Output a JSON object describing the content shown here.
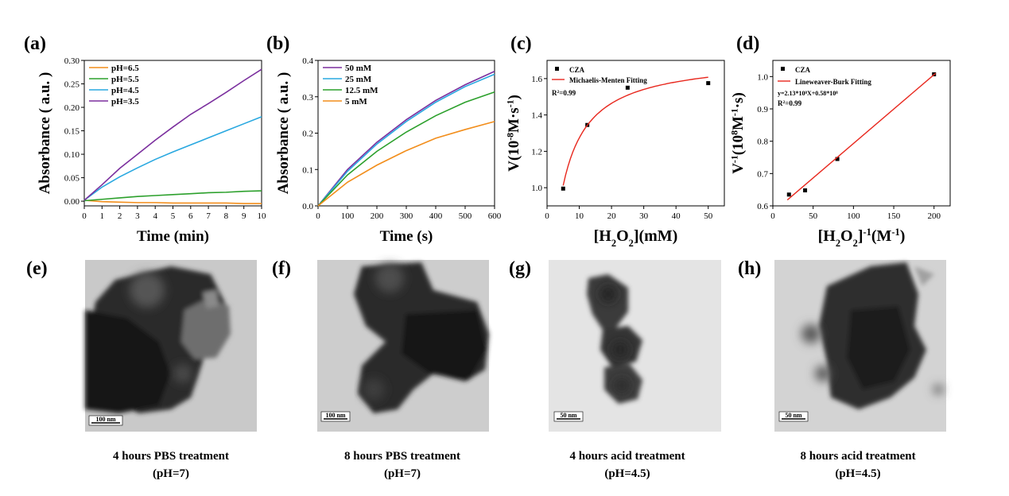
{
  "chart_data": [
    {
      "panel": "(a)",
      "type": "line",
      "xlabel": "Time (min)",
      "ylabel": "Absorbance ( a.u. )",
      "xlim": [
        0,
        10
      ],
      "ylim": [
        -0.01,
        0.3
      ],
      "xticks": [
        "0",
        "1",
        "2",
        "3",
        "4",
        "5",
        "6",
        "7",
        "8",
        "9",
        "10"
      ],
      "yticks": [
        "0.00",
        "0.05",
        "0.10",
        "0.15",
        "0.20",
        "0.25",
        "0.30"
      ],
      "legend_position": "top-left",
      "series": [
        {
          "name": "pH=6.5",
          "color": "#f28e1c",
          "x": [
            0,
            1,
            2,
            3,
            4,
            5,
            6,
            7,
            8,
            9,
            10
          ],
          "y": [
            0.002,
            -0.001,
            -0.002,
            -0.003,
            -0.003,
            -0.004,
            -0.004,
            -0.004,
            -0.004,
            -0.005,
            -0.005
          ]
        },
        {
          "name": "pH=5.5",
          "color": "#2ca02c",
          "x": [
            0,
            1,
            2,
            3,
            4,
            5,
            6,
            7,
            8,
            9,
            10
          ],
          "y": [
            0.001,
            0.004,
            0.007,
            0.01,
            0.012,
            0.014,
            0.016,
            0.018,
            0.019,
            0.021,
            0.022
          ]
        },
        {
          "name": "pH=4.5",
          "color": "#29a8e0",
          "x": [
            0,
            1,
            2,
            3,
            4,
            5,
            6,
            7,
            8,
            9,
            10
          ],
          "y": [
            0.002,
            0.03,
            0.052,
            0.071,
            0.089,
            0.105,
            0.12,
            0.135,
            0.15,
            0.165,
            0.18
          ]
        },
        {
          "name": "pH=3.5",
          "color": "#7b2f9e",
          "x": [
            0,
            1,
            2,
            3,
            4,
            5,
            6,
            7,
            8,
            9,
            10
          ],
          "y": [
            0.002,
            0.035,
            0.07,
            0.1,
            0.13,
            0.158,
            0.185,
            0.208,
            0.232,
            0.257,
            0.281
          ]
        }
      ]
    },
    {
      "panel": "(b)",
      "type": "line",
      "xlabel": "Time (s)",
      "ylabel": "Absorbance ( a.u. )",
      "xlim": [
        0,
        600
      ],
      "ylim": [
        0,
        0.4
      ],
      "xticks": [
        "0",
        "100",
        "200",
        "300",
        "400",
        "500",
        "600"
      ],
      "yticks": [
        "0.0",
        "0.1",
        "0.2",
        "0.3",
        "0.4"
      ],
      "legend_position": "top-left",
      "series": [
        {
          "name": "50 mM",
          "color": "#7b2f9e",
          "x": [
            0,
            100,
            200,
            300,
            400,
            500,
            600
          ],
          "y": [
            0.0,
            0.1,
            0.175,
            0.237,
            0.29,
            0.333,
            0.37
          ]
        },
        {
          "name": "25 mM",
          "color": "#29a8e0",
          "x": [
            0,
            100,
            200,
            300,
            400,
            500,
            600
          ],
          "y": [
            0.0,
            0.095,
            0.17,
            0.232,
            0.285,
            0.328,
            0.362
          ]
        },
        {
          "name": "12.5 mM",
          "color": "#2ca02c",
          "x": [
            0,
            100,
            200,
            300,
            400,
            500,
            600
          ],
          "y": [
            0.0,
            0.085,
            0.15,
            0.203,
            0.248,
            0.285,
            0.313
          ]
        },
        {
          "name": "5 mM",
          "color": "#f28e1c",
          "x": [
            0,
            100,
            200,
            300,
            400,
            500,
            600
          ],
          "y": [
            0.0,
            0.065,
            0.112,
            0.152,
            0.186,
            0.21,
            0.232
          ]
        }
      ]
    },
    {
      "panel": "(c)",
      "type": "scatter",
      "xlabel": "[H2O2](mM)",
      "ylabel": "V(10-8M·s-1)",
      "xlim": [
        0,
        55
      ],
      "ylim": [
        0.9,
        1.7
      ],
      "xticks": [
        "0",
        "10",
        "20",
        "30",
        "40",
        "50"
      ],
      "yticks": [
        "1.0",
        "1.2",
        "1.4",
        "1.6"
      ],
      "legend_position": "top-left",
      "annotation": "R2=0.99",
      "series": [
        {
          "name": "CZA",
          "color": "#000000",
          "x": [
            5,
            12.5,
            25,
            50
          ],
          "y": [
            0.995,
            1.345,
            1.55,
            1.575
          ]
        },
        {
          "name": "Michaelis-Menten Fitting",
          "color": "#e8281e",
          "vmax": 1.72,
          "km": 3.5,
          "xrange": [
            5,
            50
          ]
        }
      ]
    },
    {
      "panel": "(d)",
      "type": "scatter",
      "xlabel": "[H2O2]-1(M-1)",
      "ylabel": "V-1(108M-1·s)",
      "xlim": [
        0,
        220
      ],
      "ylim": [
        0.6,
        1.05
      ],
      "xticks": [
        "0",
        "50",
        "100",
        "150",
        "200"
      ],
      "yticks": [
        "0.6",
        "0.7",
        "0.8",
        "0.9",
        "1.0"
      ],
      "legend_position": "top-left",
      "annotation_eq": "y=2.13*10⁸X+0.58*10⁸",
      "annotation_r2": "R2=0.99",
      "series": [
        {
          "name": "CZA",
          "color": "#000000",
          "x": [
            20,
            40,
            80,
            200
          ],
          "y": [
            0.635,
            0.648,
            0.745,
            1.007
          ]
        },
        {
          "name": "Lineweaver-Burk Fitting",
          "color": "#e8281e",
          "slope": 0.00213,
          "intercept": 0.58,
          "xrange": [
            18,
            202
          ]
        }
      ]
    }
  ],
  "panel_letters": [
    "(a)",
    "(b)",
    "(c)",
    "(d)",
    "(e)",
    "(f)",
    "(g)",
    "(h)"
  ],
  "tem_panels": [
    {
      "letter": "(e)",
      "scale": "100 nm",
      "caption_line1": "4 hours PBS treatment",
      "caption_line2": "(pH=7)"
    },
    {
      "letter": "(f)",
      "scale": "100 nm",
      "caption_line1": "8 hours PBS treatment",
      "caption_line2": "(pH=7)"
    },
    {
      "letter": "(g)",
      "scale": "50 nm",
      "caption_line1": "4 hours acid treatment",
      "caption_line2": "(pH=4.5)"
    },
    {
      "letter": "(h)",
      "scale": "50 nm",
      "caption_line1": "8 hours acid treatment",
      "caption_line2": "(pH=4.5)"
    }
  ]
}
